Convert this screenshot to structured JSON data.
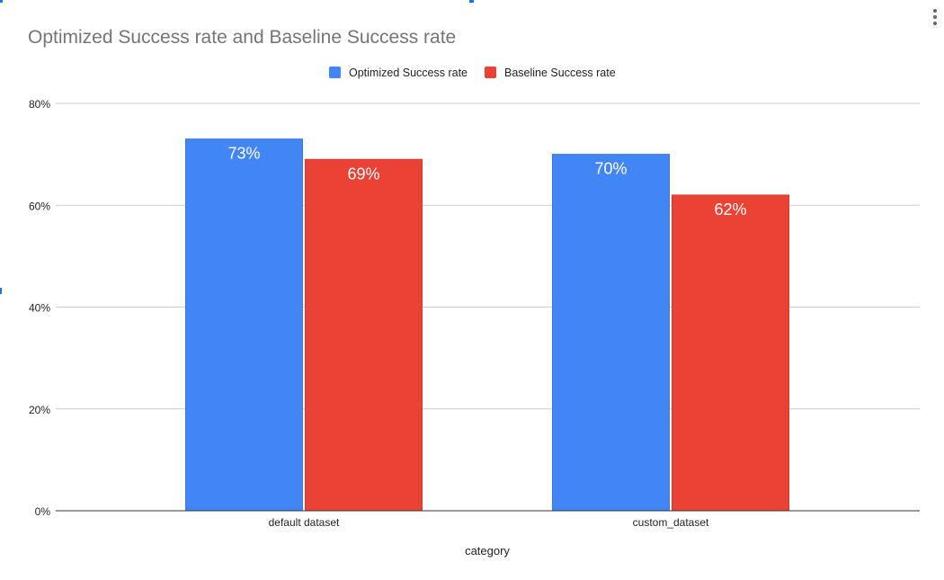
{
  "chart_data": {
    "type": "bar",
    "title": "Optimized Success rate and Baseline Success rate",
    "xlabel": "category",
    "ylabel": "",
    "categories": [
      "default dataset",
      "custom_dataset"
    ],
    "series": [
      {
        "name": "Optimized Success rate",
        "color": "#4285f4",
        "values": [
          73,
          70
        ],
        "labels": [
          "73%",
          "70%"
        ]
      },
      {
        "name": "Baseline Success rate",
        "color": "#ea4335",
        "values": [
          69,
          62
        ],
        "labels": [
          "69%",
          "62%"
        ]
      }
    ],
    "ylim": [
      0,
      80
    ],
    "yticks": [
      0,
      20,
      40,
      60,
      80
    ],
    "ytick_labels": [
      "0%",
      "20%",
      "40%",
      "60%",
      "80%"
    ],
    "grid": true,
    "legend_position": "top-center"
  },
  "menu": {
    "icon": "more-vert-icon"
  }
}
